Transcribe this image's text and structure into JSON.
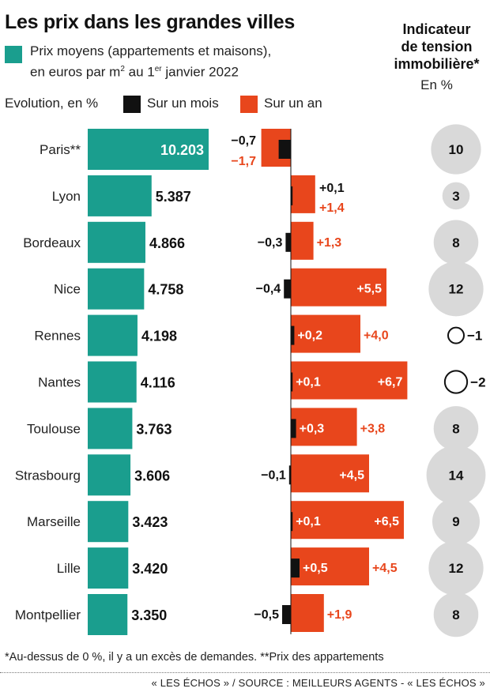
{
  "header": {
    "title": "Les prix dans les grandes villes",
    "legend_prices_line1": "Prix moyens (appartements et maisons),",
    "legend_prices_line2_a": "en euros par m",
    "legend_prices_line2_sup": "2",
    "legend_prices_line2_b": " au 1",
    "legend_prices_line2_sup2": "er",
    "legend_prices_line2_c": " janvier 2022",
    "evolution_label": "Evolution, en %",
    "legend_month": "Sur un mois",
    "legend_year": "Sur un an"
  },
  "side": {
    "title_line1": "Indicateur",
    "title_line2": "de tension",
    "title_line3": "immobilière*",
    "unit": "En %"
  },
  "footer": {
    "footnote": "*Au-dessus de 0 %, il y a un excès de demandes. **Prix des appartements",
    "source": "« LES ÉCHOS » / SOURCE : MEILLEURS AGENTS - « LES ÉCHOS »"
  },
  "colors": {
    "price": "#1a9e8e",
    "month": "#111111",
    "year": "#e8461c",
    "bubble": "#d9d9d9"
  },
  "chart_data": {
    "type": "bar",
    "categories": [
      "Paris**",
      "Lyon",
      "Bordeaux",
      "Nice",
      "Rennes",
      "Nantes",
      "Toulouse",
      "Strasbourg",
      "Marseille",
      "Lille",
      "Montpellier"
    ],
    "series": [
      {
        "name": "Prix moyens",
        "values": [
          10203,
          5387,
          4866,
          4758,
          4198,
          4116,
          3763,
          3606,
          3423,
          3420,
          3350
        ],
        "labels": [
          "10.203",
          "5.387",
          "4.866",
          "4.758",
          "4.198",
          "4.116",
          "3.763",
          "3.606",
          "3.423",
          "3.420",
          "3.350"
        ]
      },
      {
        "name": "Sur un mois",
        "values": [
          -0.7,
          0.1,
          -0.3,
          -0.4,
          0.2,
          0.1,
          0.3,
          -0.1,
          0.1,
          0.5,
          -0.5
        ],
        "labels": [
          "-0,7",
          "+0,1",
          "-0,3",
          "-0,4",
          "+0,2",
          "+0,1",
          "+0,3",
          "-0,1",
          "+0,1",
          "+0,5",
          "-0,5"
        ]
      },
      {
        "name": "Sur un an",
        "values": [
          -1.7,
          1.4,
          1.3,
          5.5,
          4.0,
          6.7,
          3.8,
          4.5,
          6.5,
          4.5,
          1.9
        ],
        "labels": [
          "-1,7",
          "+1,4",
          "+1,3",
          "+5,5",
          "+4,0",
          "+6,7",
          "+3,8",
          "+4,5",
          "+6,5",
          "+4,5",
          "+1,9"
        ]
      },
      {
        "name": "Indicateur de tension immobilière",
        "values": [
          10,
          3,
          8,
          12,
          -1,
          -2,
          8,
          14,
          9,
          12,
          8
        ],
        "labels": [
          "10",
          "3",
          "8",
          "12",
          "−1",
          "−2",
          "8",
          "14",
          "9",
          "12",
          "8"
        ]
      }
    ]
  }
}
